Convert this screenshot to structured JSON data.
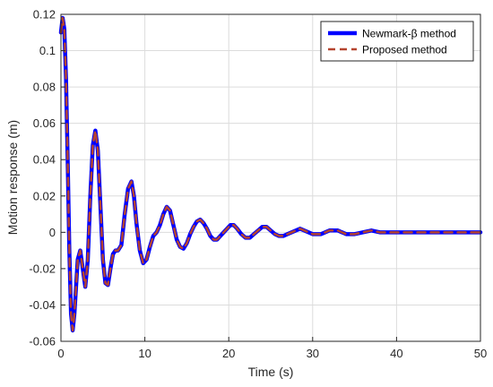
{
  "chart_data": {
    "type": "line",
    "title": "",
    "xlabel": "Time (s)",
    "ylabel": "Motion response (m)",
    "xlim": [
      0,
      50
    ],
    "ylim": [
      -0.06,
      0.12
    ],
    "xticks": [
      0,
      10,
      20,
      30,
      40,
      50
    ],
    "yticks": [
      -0.06,
      -0.04,
      -0.02,
      0,
      0.02,
      0.04,
      0.06,
      0.08,
      0.1,
      0.12
    ],
    "xtick_labels": [
      "0",
      "10",
      "20",
      "30",
      "40",
      "50"
    ],
    "ytick_labels": [
      "-0.06",
      "-0.04",
      "-0.02",
      "0",
      "0.02",
      "0.04",
      "0.06",
      "0.08",
      "0.1",
      "0.12"
    ],
    "grid": true,
    "legend_position": "top-right",
    "series": [
      {
        "name": "Newmark-β method",
        "color": "#0000ff",
        "line_style": "solid",
        "x": [
          0,
          0.2,
          0.4,
          0.6,
          0.8,
          1.0,
          1.2,
          1.4,
          1.6,
          1.8,
          2.0,
          2.3,
          2.6,
          2.9,
          3.2,
          3.5,
          3.8,
          4.1,
          4.4,
          4.7,
          5.0,
          5.3,
          5.6,
          5.9,
          6.2,
          6.5,
          6.8,
          7.2,
          7.6,
          8.0,
          8.4,
          8.7,
          9.0,
          9.4,
          9.8,
          10.2,
          10.6,
          11.0,
          11.4,
          11.8,
          12.2,
          12.6,
          13.0,
          13.4,
          13.8,
          14.2,
          14.6,
          15.0,
          15.4,
          15.8,
          16.2,
          16.6,
          17.0,
          17.4,
          17.8,
          18.2,
          18.6,
          19.0,
          19.4,
          19.8,
          20.2,
          20.6,
          21.0,
          21.5,
          22.0,
          22.5,
          23.0,
          23.5,
          24.0,
          24.5,
          25.0,
          25.5,
          26.0,
          26.5,
          27.0,
          27.5,
          28.0,
          28.5,
          29.0,
          29.5,
          30.0,
          31.0,
          32.0,
          33.0,
          34.0,
          35.0,
          36.0,
          37.0,
          38.0,
          39.0,
          40.0,
          41.0,
          42.0,
          43.0,
          44.0,
          45.0,
          46.0,
          47.0,
          48.0,
          49.0,
          50.0
        ],
        "y": [
          0.11,
          0.118,
          0.112,
          0.085,
          0.04,
          -0.01,
          -0.045,
          -0.054,
          -0.045,
          -0.03,
          -0.015,
          -0.01,
          -0.02,
          -0.03,
          -0.015,
          0.02,
          0.048,
          0.056,
          0.045,
          0.015,
          -0.015,
          -0.028,
          -0.029,
          -0.02,
          -0.012,
          -0.01,
          -0.01,
          -0.007,
          0.01,
          0.024,
          0.028,
          0.02,
          0.005,
          -0.01,
          -0.017,
          -0.015,
          -0.008,
          -0.002,
          0.0,
          0.004,
          0.01,
          0.014,
          0.012,
          0.004,
          -0.004,
          -0.008,
          -0.009,
          -0.006,
          -0.001,
          0.003,
          0.006,
          0.007,
          0.005,
          0.002,
          -0.002,
          -0.004,
          -0.004,
          -0.002,
          0.0,
          0.002,
          0.004,
          0.004,
          0.002,
          -0.001,
          -0.003,
          -0.003,
          -0.001,
          0.001,
          0.003,
          0.003,
          0.001,
          -0.001,
          -0.002,
          -0.002,
          -0.001,
          0.0,
          0.001,
          0.002,
          0.001,
          0.0,
          -0.001,
          -0.001,
          0.001,
          0.001,
          -0.001,
          -0.001,
          0.0,
          0.001,
          0.0,
          0.0,
          0.0,
          0.0,
          0.0,
          0.0,
          0.0,
          0.0,
          0.0,
          0.0,
          0.0,
          0.0,
          0.0
        ]
      },
      {
        "name": "Proposed method",
        "color": "#b5442f",
        "line_style": "dashed",
        "x": [
          0,
          0.2,
          0.4,
          0.6,
          0.8,
          1.0,
          1.2,
          1.4,
          1.6,
          1.8,
          2.0,
          2.3,
          2.6,
          2.9,
          3.2,
          3.5,
          3.8,
          4.1,
          4.4,
          4.7,
          5.0,
          5.3,
          5.6,
          5.9,
          6.2,
          6.5,
          6.8,
          7.2,
          7.6,
          8.0,
          8.4,
          8.7,
          9.0,
          9.4,
          9.8,
          10.2,
          10.6,
          11.0,
          11.4,
          11.8,
          12.2,
          12.6,
          13.0,
          13.4,
          13.8,
          14.2,
          14.6,
          15.0,
          15.4,
          15.8,
          16.2,
          16.6,
          17.0,
          17.4,
          17.8,
          18.2,
          18.6,
          19.0,
          19.4,
          19.8,
          20.2,
          20.6,
          21.0,
          21.5,
          22.0,
          22.5,
          23.0,
          23.5,
          24.0,
          24.5,
          25.0,
          25.5,
          26.0,
          26.5,
          27.0,
          27.5,
          28.0,
          28.5,
          29.0,
          29.5,
          30.0,
          31.0,
          32.0,
          33.0,
          34.0,
          35.0,
          36.0,
          37.0,
          38.0,
          39.0,
          40.0,
          41.0,
          42.0,
          43.0,
          44.0,
          45.0,
          46.0,
          47.0,
          48.0,
          49.0,
          50.0
        ],
        "y": [
          0.11,
          0.118,
          0.112,
          0.085,
          0.04,
          -0.01,
          -0.045,
          -0.054,
          -0.045,
          -0.03,
          -0.015,
          -0.01,
          -0.02,
          -0.03,
          -0.015,
          0.02,
          0.048,
          0.056,
          0.045,
          0.015,
          -0.015,
          -0.028,
          -0.029,
          -0.02,
          -0.012,
          -0.01,
          -0.01,
          -0.007,
          0.01,
          0.024,
          0.028,
          0.02,
          0.005,
          -0.01,
          -0.017,
          -0.015,
          -0.008,
          -0.002,
          0.0,
          0.004,
          0.01,
          0.014,
          0.012,
          0.004,
          -0.004,
          -0.008,
          -0.009,
          -0.006,
          -0.001,
          0.003,
          0.006,
          0.007,
          0.005,
          0.002,
          -0.002,
          -0.004,
          -0.004,
          -0.002,
          0.0,
          0.002,
          0.004,
          0.004,
          0.002,
          -0.001,
          -0.003,
          -0.003,
          -0.001,
          0.001,
          0.003,
          0.003,
          0.001,
          -0.001,
          -0.002,
          -0.002,
          -0.001,
          0.0,
          0.001,
          0.002,
          0.001,
          0.0,
          -0.001,
          -0.001,
          0.001,
          0.001,
          -0.001,
          -0.001,
          0.0,
          0.001,
          0.0,
          0.0,
          0.0,
          0.0,
          0.0,
          0.0,
          0.0,
          0.0,
          0.0,
          0.0,
          0.0,
          0.0,
          0.0
        ]
      }
    ]
  }
}
